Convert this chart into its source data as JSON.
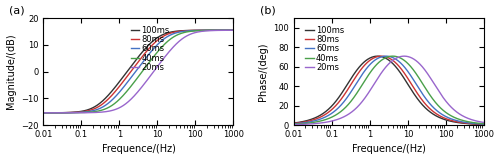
{
  "delays_ms": [
    20,
    40,
    60,
    80,
    100
  ],
  "colors": [
    "#9966cc",
    "#4aa04a",
    "#4472c4",
    "#cc3333",
    "#333333"
  ],
  "freq_min": 0.01,
  "freq_max": 1000,
  "freq_points": 3000,
  "mag_ylim": [
    -20,
    20
  ],
  "mag_yticks": [
    -20,
    -10,
    0,
    10,
    20
  ],
  "phase_ylim": [
    0,
    110
  ],
  "phase_yticks": [
    0,
    20,
    40,
    60,
    80,
    100
  ],
  "xlabel": "Frequence/(Hz)",
  "ylabel_mag": "Magnitude/(dB)",
  "ylabel_phase": "Phase/(deg)",
  "label_a": "(a)",
  "label_b": "(b)",
  "legend_labels": [
    "100ms",
    "80ms",
    "60ms",
    "40ms",
    "20ms"
  ],
  "title_fontsize": 7,
  "tick_fontsize": 6,
  "label_fontsize": 7,
  "legend_fontsize": 6,
  "linewidth": 1.0,
  "alpha": 35.0,
  "background_color": "#ffffff"
}
